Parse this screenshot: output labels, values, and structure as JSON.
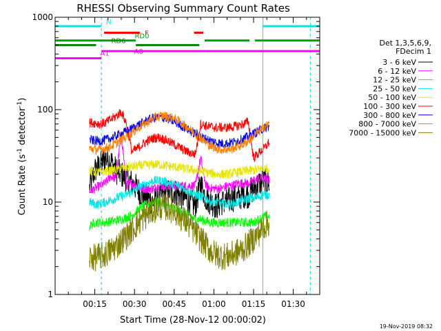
{
  "chart_data": {
    "type": "line",
    "title": "RHESSI Observing Summary Count Rates",
    "xlabel": "Start Time (28-Nov-12 00:00:02)",
    "ylabel_main": "Count Rate (s",
    "ylabel_sup1": "-1",
    "ylabel_mid": " detector",
    "ylabel_sup2": "-1",
    "ylabel_end": ")",
    "yscale": "log",
    "ylim": [
      1,
      1000
    ],
    "xlim_minutes": [
      0,
      100
    ],
    "xticks": [
      {
        "label": "00:15",
        "minute": 15
      },
      {
        "label": "00:30",
        "minute": 30
      },
      {
        "label": "00:45",
        "minute": 45
      },
      {
        "label": "01:00",
        "minute": 60
      },
      {
        "label": "01:15",
        "minute": 75
      },
      {
        "label": "01:30",
        "minute": 90
      }
    ],
    "yticks": [
      {
        "label": "1",
        "value": 1
      },
      {
        "label": "10",
        "value": 10
      },
      {
        "label": "100",
        "value": 100
      },
      {
        "label": "1000",
        "value": 1000
      }
    ],
    "legend_title_1": "Det 1,3,5,6,9,",
    "legend_title_2": "FDecim 1",
    "legend_placement": "right",
    "footer": "19-Nov-2019 08:32",
    "flag_bars": [
      {
        "label": "N",
        "color": "#00e5e5",
        "segments": [
          [
            -1,
            17.5
          ],
          [
            78.5,
            100
          ]
        ],
        "value": 800
      },
      {
        "label": "F",
        "color": "#ff0000",
        "segments": [
          [
            18.5,
            32
          ],
          [
            52.5,
            56
          ]
        ],
        "value": 680
      },
      {
        "label": "RD0",
        "color": "#00a000",
        "segments": [
          [
            0,
            30.5
          ],
          [
            56.5,
            73.5
          ],
          [
            75.5,
            100
          ]
        ],
        "value": 560
      },
      {
        "label": "RD6",
        "color": "#008000",
        "segments": [
          [
            0,
            15.5
          ],
          [
            30.5,
            54.5
          ]
        ],
        "value": 500
      },
      {
        "label": "A0",
        "color": "#ff00ff",
        "segments": [
          [
            17.5,
            100
          ]
        ],
        "value": 430
      },
      {
        "label": "A1",
        "color": "#ff00ff",
        "segments": [
          [
            -1,
            17.5
          ]
        ],
        "value": 360
      }
    ],
    "markers": {
      "cyan_solid_minutes": [
        -0.5,
        78.5
      ],
      "cyan_dashed_minutes": [
        17.5,
        96.5
      ]
    },
    "series": [
      {
        "name": "3 - 6 keV",
        "color": "#000000",
        "x": [
          13,
          15,
          17,
          19,
          21,
          23,
          25,
          27,
          29,
          31,
          33,
          35,
          37,
          39,
          41,
          43,
          45,
          47,
          49,
          51,
          53,
          55,
          57,
          59,
          61,
          63,
          65,
          67,
          69,
          71,
          73,
          75,
          77,
          79,
          81
        ],
        "y": [
          14,
          22,
          25,
          30,
          28,
          22,
          20,
          18,
          16,
          14,
          12,
          11,
          10,
          11,
          12,
          13,
          13,
          12,
          11,
          10,
          9,
          16,
          11,
          10,
          9,
          10,
          10,
          11,
          11,
          12,
          12,
          14,
          16,
          17,
          16
        ]
      },
      {
        "name": "6 - 12 keV",
        "color": "#ff00ff",
        "x": [
          13,
          15,
          17,
          19,
          21,
          23,
          25,
          27,
          29,
          31,
          33,
          35,
          37,
          39,
          41,
          43,
          45,
          47,
          49,
          51,
          53,
          55,
          57,
          59,
          61,
          63,
          65,
          67,
          69,
          71,
          73,
          75,
          77,
          79,
          81
        ],
        "y": [
          13,
          14,
          15,
          16,
          19,
          18,
          55,
          15,
          16,
          15,
          14,
          14,
          14,
          15,
          15,
          15,
          15,
          15,
          15,
          15,
          15,
          30,
          15,
          14,
          14,
          14,
          15,
          15,
          16,
          16,
          16,
          17,
          18,
          18,
          17
        ]
      },
      {
        "name": "12 - 25 keV",
        "color": "#00ff00",
        "x": [
          13,
          15,
          17,
          19,
          21,
          23,
          25,
          27,
          29,
          31,
          33,
          35,
          37,
          39,
          41,
          43,
          45,
          47,
          49,
          51,
          53,
          55,
          57,
          59,
          61,
          63,
          65,
          67,
          69,
          71,
          73,
          75,
          77,
          79,
          81
        ],
        "y": [
          5.5,
          6,
          6,
          6,
          6.2,
          6.3,
          6.5,
          6.8,
          7.2,
          8,
          8.8,
          9.5,
          10,
          10,
          9.5,
          9,
          8.5,
          8,
          7.5,
          7,
          6.5,
          6.5,
          6.2,
          6,
          6,
          6,
          6,
          6,
          6,
          6,
          6,
          6,
          6.5,
          7,
          7
        ]
      },
      {
        "name": "25 - 50 keV",
        "color": "#00e5e5",
        "x": [
          13,
          15,
          17,
          19,
          21,
          23,
          25,
          27,
          29,
          31,
          33,
          35,
          37,
          39,
          41,
          43,
          45,
          47,
          49,
          51,
          53,
          55,
          57,
          59,
          61,
          63,
          65,
          67,
          69,
          71,
          73,
          75,
          77,
          79,
          81
        ],
        "y": [
          10,
          9.5,
          9.5,
          10,
          10.5,
          11,
          11.5,
          12,
          13,
          14,
          15,
          16,
          17,
          17,
          17,
          16,
          15.5,
          15,
          14,
          13,
          12,
          11.5,
          11,
          10,
          10,
          9.5,
          9.5,
          9.5,
          10,
          10.5,
          11,
          11,
          11.5,
          12,
          12
        ]
      },
      {
        "name": "50 - 100 keV",
        "color": "#e5e500",
        "x": [
          13,
          15,
          17,
          19,
          21,
          23,
          25,
          27,
          29,
          31,
          33,
          35,
          37,
          39,
          41,
          43,
          45,
          47,
          49,
          51,
          53,
          55,
          57,
          59,
          61,
          63,
          65,
          67,
          69,
          71,
          73,
          75,
          77,
          79,
          81
        ],
        "y": [
          22,
          21,
          21,
          21.5,
          22,
          22.5,
          23,
          23.5,
          24,
          24.5,
          25,
          25,
          25.5,
          25.5,
          25,
          24.5,
          24,
          23.5,
          23,
          22.5,
          22,
          21.5,
          21,
          20.5,
          20,
          20,
          20,
          20.5,
          21,
          21.5,
          22,
          22,
          22.5,
          23,
          23
        ]
      },
      {
        "name": "100 - 300 keV",
        "color": "#ff0000",
        "x": [
          13,
          15,
          17,
          19,
          21,
          23,
          25,
          27,
          29,
          31,
          33,
          35,
          37,
          39,
          41,
          43,
          45,
          47,
          49,
          51,
          53,
          55,
          57,
          59,
          61,
          63,
          65,
          67,
          69,
          71,
          73,
          75,
          77,
          79,
          81
        ],
        "y": [
          72,
          72,
          70,
          72,
          78,
          85,
          95,
          70,
          35,
          38,
          42,
          46,
          49,
          50,
          48,
          45,
          42,
          39,
          36,
          34,
          33,
          70,
          67,
          65,
          64,
          64,
          64,
          65,
          67,
          70,
          74,
          30,
          34,
          38,
          45
        ]
      },
      {
        "name": "300 - 800 keV",
        "color": "#0000ff",
        "x": [
          13,
          15,
          17,
          19,
          21,
          23,
          25,
          27,
          29,
          31,
          33,
          35,
          37,
          39,
          41,
          43,
          45,
          47,
          49,
          51,
          53,
          55,
          57,
          59,
          61,
          63,
          65,
          67,
          69,
          71,
          73,
          75,
          77,
          79,
          81
        ],
        "y": [
          47,
          46,
          46,
          47,
          49,
          52,
          55,
          58,
          62,
          67,
          72,
          77,
          81,
          83,
          82,
          79,
          74,
          69,
          64,
          59,
          55,
          51,
          48,
          46,
          44,
          43,
          43,
          44,
          46,
          48,
          51,
          55,
          59,
          63,
          66
        ]
      },
      {
        "name": "800 - 7000 keV",
        "color": "#ff8000",
        "x": [
          13,
          15,
          17,
          19,
          21,
          23,
          25,
          27,
          29,
          31,
          33,
          35,
          37,
          39,
          41,
          43,
          45,
          47,
          49,
          51,
          53,
          55,
          57,
          59,
          61,
          63,
          65,
          67,
          69,
          71,
          73,
          75,
          77,
          79,
          81
        ],
        "y": [
          38,
          37,
          37,
          38,
          40,
          43,
          47,
          51,
          56,
          62,
          68,
          74,
          80,
          84,
          86,
          84,
          80,
          74,
          67,
          61,
          55,
          49,
          44,
          40,
          38,
          37,
          37,
          38,
          40,
          42,
          46,
          52,
          58,
          65,
          70
        ]
      },
      {
        "name": "7000 - 15000 keV",
        "color": "#808000",
        "x": [
          13,
          15,
          17,
          19,
          21,
          23,
          25,
          27,
          29,
          31,
          33,
          35,
          37,
          39,
          41,
          43,
          45,
          47,
          49,
          51,
          53,
          55,
          57,
          59,
          61,
          63,
          65,
          67,
          69,
          71,
          73,
          75,
          77,
          79,
          81
        ],
        "y": [
          2.5,
          2.5,
          2.6,
          2.7,
          3,
          3.3,
          3.8,
          4.3,
          5,
          5.8,
          6.6,
          7.4,
          8.2,
          8.8,
          9,
          8.6,
          8,
          7.2,
          6.3,
          5.5,
          4.7,
          4,
          3.4,
          2.9,
          2.7,
          2.6,
          2.6,
          2.7,
          2.9,
          3.1,
          3.5,
          4,
          4.6,
          5.5,
          6
        ]
      }
    ]
  }
}
